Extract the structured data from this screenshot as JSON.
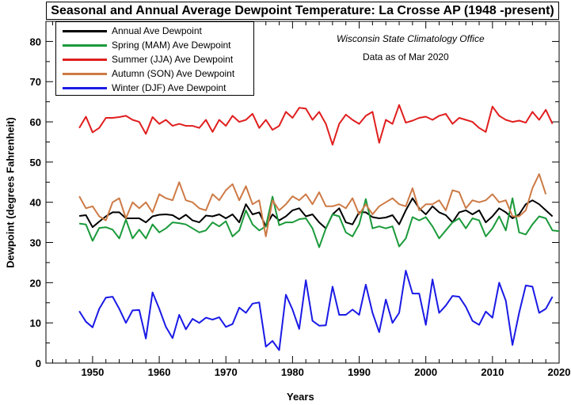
{
  "chart_data": {
    "type": "line",
    "title": "Seasonal and Annual Average Dewpoint Temperature: La Crosse AP (1948 -present)",
    "xlabel": "Years",
    "ylabel": "Dewpoint (degrees Fahrenheit)",
    "xlim": [
      1943,
      2020
    ],
    "ylim": [
      0,
      85
    ],
    "xticks": [
      1950,
      1960,
      1970,
      1980,
      1990,
      2000,
      2010,
      2020
    ],
    "yticks": [
      0,
      10,
      20,
      30,
      40,
      50,
      60,
      70,
      80
    ],
    "legend_position": "top-left",
    "annotations": [
      "Wisconsin State Climatology Office",
      "Data as of Mar 2020"
    ],
    "x_start": 1948,
    "series": [
      {
        "name": "Annual Ave Dewpoint",
        "color": "#000000",
        "x_start": 1948,
        "values": [
          36.6,
          36.8,
          33.8,
          35.2,
          36.5,
          37.5,
          37.5,
          36.0,
          36.0,
          36.0,
          35.0,
          36.5,
          36.9,
          37.0,
          36.8,
          35.8,
          36.9,
          35.5,
          35.0,
          36.7,
          36.5,
          37.0,
          36.0,
          37.0,
          35.0,
          39.5,
          37.0,
          37.5,
          34.0,
          37.0,
          35.5,
          36.5,
          38.0,
          38.5,
          36.5,
          37.0,
          35.0,
          33.5,
          37.0,
          38.5,
          35.0,
          34.5,
          37.5,
          37.5,
          36.3,
          36.0,
          36.2,
          36.8,
          34.5,
          38.0,
          41.0,
          38.5,
          37.0,
          39.0,
          37.5,
          36.8,
          35.0,
          37.5,
          38.0,
          37.0,
          38.0,
          35.0,
          36.5,
          38.5,
          37.5,
          36.0,
          37.0,
          39.5,
          40.5,
          39.5,
          38.0,
          36.5
        ]
      },
      {
        "name": "Spring (MAM) Ave Dewpoint",
        "color": "#1a9a3a",
        "x_start": 1948,
        "values": [
          34.7,
          34.5,
          30.4,
          33.6,
          33.8,
          33.2,
          31.0,
          35.7,
          31.0,
          33.2,
          31.0,
          34.5,
          32.5,
          33.5,
          35.0,
          34.8,
          34.5,
          33.5,
          32.5,
          33.0,
          35.0,
          34.0,
          35.3,
          31.5,
          33.0,
          38.0,
          34.5,
          33.0,
          34.0,
          41.4,
          34.3,
          35.0,
          35.0,
          35.8,
          36.0,
          33.5,
          28.8,
          33.5,
          37.0,
          36.5,
          32.5,
          31.5,
          34.5,
          40.8,
          33.5,
          34.0,
          33.5,
          34.0,
          29.0,
          31.0,
          36.3,
          35.5,
          36.3,
          34.0,
          31.0,
          33.0,
          35.0,
          36.0,
          33.5,
          36.0,
          35.5,
          31.5,
          33.5,
          36.5,
          33.0,
          41.0,
          32.5,
          32.0,
          34.5,
          36.5,
          36.0,
          33.0,
          32.8
        ]
      },
      {
        "name": "Summer (JJA) Ave Dewpoint",
        "color": "#e01e1e",
        "x_start": 1948,
        "values": [
          58.5,
          61.3,
          57.4,
          58.5,
          61.0,
          61.0,
          61.2,
          61.5,
          60.5,
          60.0,
          57.0,
          61.2,
          59.5,
          60.5,
          59.0,
          59.5,
          59.0,
          59.0,
          58.5,
          60.5,
          57.5,
          60.5,
          59.0,
          61.5,
          60.0,
          60.5,
          62.0,
          58.5,
          60.5,
          58.0,
          59.0,
          62.5,
          61.0,
          63.5,
          63.3,
          60.5,
          62.5,
          59.5,
          54.3,
          59.5,
          61.8,
          60.5,
          59.5,
          61.5,
          62.5,
          54.8,
          60.5,
          59.5,
          64.2,
          59.8,
          60.3,
          61.0,
          61.3,
          60.5,
          61.5,
          62.0,
          59.5,
          61.0,
          60.5,
          60.0,
          58.5,
          57.5,
          63.8,
          61.5,
          60.5,
          60.0,
          60.3,
          59.8,
          62.5,
          60.5,
          63.0,
          59.5
        ]
      },
      {
        "name": "Autumn (SON) Ave Dewpoint",
        "color": "#cd7a45",
        "x_start": 1948,
        "values": [
          41.5,
          38.5,
          39.0,
          36.5,
          35.5,
          40.0,
          41.0,
          36.0,
          40.0,
          38.5,
          40.0,
          37.5,
          42.0,
          41.0,
          40.5,
          45.0,
          40.5,
          40.0,
          38.5,
          38.0,
          42.0,
          40.5,
          43.0,
          44.5,
          40.5,
          44.0,
          39.5,
          40.5,
          31.5,
          40.5,
          38.0,
          39.5,
          41.5,
          40.5,
          42.0,
          39.5,
          42.5,
          39.0,
          39.0,
          39.5,
          38.5,
          41.0,
          37.0,
          39.5,
          37.0,
          39.0,
          40.0,
          41.0,
          39.5,
          39.0,
          43.5,
          38.0,
          39.5,
          39.5,
          40.5,
          38.0,
          43.0,
          42.5,
          38.5,
          40.5,
          40.0,
          40.5,
          42.0,
          40.0,
          40.5,
          36.5,
          36.5,
          38.0,
          43.5,
          47.0,
          42.0
        ]
      },
      {
        "name": "Winter (DJF) Ave Dewpoint",
        "color": "#1a1ae6",
        "x_start": 1948,
        "values": [
          12.9,
          10.3,
          8.9,
          13.5,
          16.3,
          16.5,
          13.5,
          10.0,
          13.1,
          13.2,
          6.1,
          17.6,
          13.5,
          9.0,
          6.2,
          12.0,
          8.4,
          11.0,
          10.0,
          11.3,
          10.8,
          11.4,
          9.0,
          9.7,
          13.8,
          12.5,
          14.8,
          15.1,
          4.1,
          5.5,
          3.2,
          17.0,
          13.3,
          8.5,
          20.6,
          10.5,
          9.3,
          9.4,
          19.0,
          12.0,
          12.0,
          13.3,
          12.0,
          19.5,
          12.5,
          7.7,
          15.8,
          10.0,
          12.5,
          23.0,
          17.3,
          17.3,
          9.5,
          20.8,
          12.5,
          14.3,
          16.7,
          16.5,
          14.0,
          10.5,
          9.5,
          12.8,
          11.3,
          20.0,
          15.5,
          4.5,
          12.5,
          19.3,
          19.0,
          12.5,
          13.5,
          16.5
        ]
      }
    ]
  }
}
